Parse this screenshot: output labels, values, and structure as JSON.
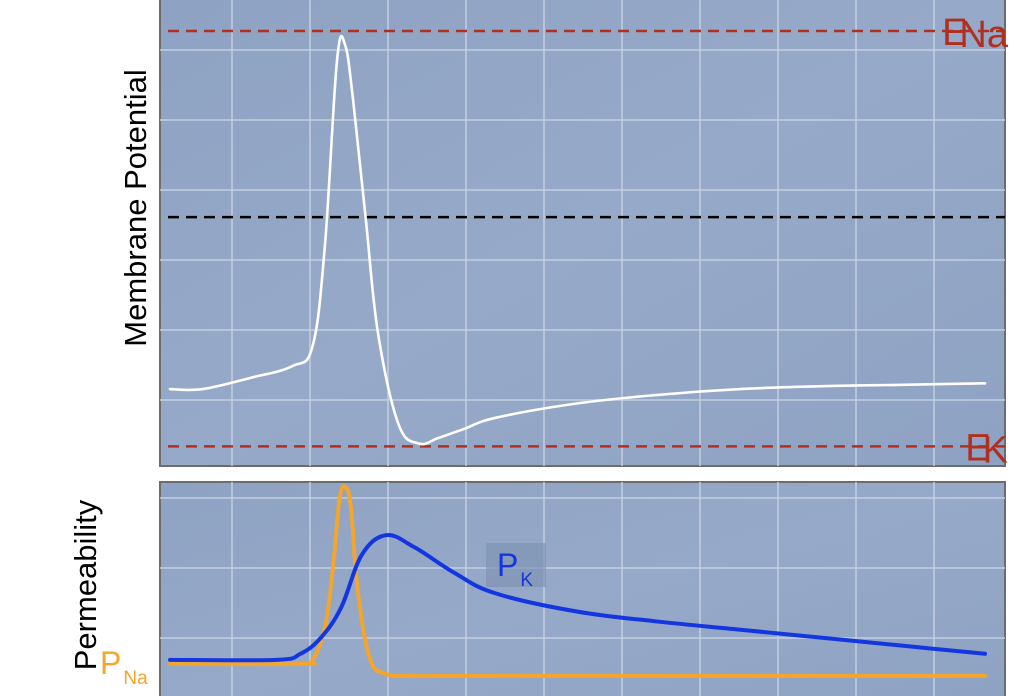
{
  "colors": {
    "panel_bg": "#8ea2c3",
    "panel_bg_light": "#a1b3cf",
    "grid": "#c3cfe0",
    "frame": "#6c6c6c",
    "membrane_trace": "#ffffff",
    "threshold": "#000000",
    "equilibrium": "#b03020",
    "p_na": "#f4a52c",
    "p_k": "#1436e0"
  },
  "chart_data": [
    {
      "type": "line",
      "ylabel": "Membrane Potential",
      "xlabel": "",
      "grid": true,
      "legend": "none",
      "ylim": [
        -100,
        70
      ],
      "xlim": [
        0,
        10
      ],
      "reference_lines": [
        {
          "id": "e_na",
          "label_main": "E",
          "label_sub": "Na",
          "y": 55,
          "style": "dashed",
          "color": "#b03020"
        },
        {
          "id": "threshold",
          "label_main": "",
          "label_sub": "",
          "y": -10,
          "style": "dashed",
          "color": "#000000"
        },
        {
          "id": "e_k",
          "label_main": "E",
          "label_sub": "K",
          "y": -90,
          "style": "dashed",
          "color": "#b03020"
        }
      ],
      "series": [
        {
          "color": "#ffffff",
          "x": [
            0,
            0.4,
            1.0,
            1.5,
            1.75,
            1.9,
            2.05,
            2.15,
            2.25,
            2.4,
            2.55,
            2.8,
            3.05,
            3.3,
            3.6,
            4.0,
            5.0,
            6.0,
            7.0,
            8.0,
            9.0,
            10.0
          ],
          "y": [
            -70,
            -70,
            -66,
            -62,
            -55,
            -20,
            45,
            50,
            30,
            -10,
            -50,
            -82,
            -89,
            -87,
            -84,
            -80,
            -75,
            -72,
            -70,
            -69,
            -68.5,
            -68
          ]
        }
      ]
    },
    {
      "type": "line",
      "ylabel": "Permeability",
      "xlabel": "",
      "grid": true,
      "legend": "none",
      "ylim": [
        0,
        1
      ],
      "xlim": [
        0,
        10
      ],
      "series": [
        {
          "name_main": "P",
          "name_sub": "Na",
          "color": "#f4a52c",
          "x": [
            0,
            1.6,
            1.75,
            1.9,
            2.0,
            2.08,
            2.15,
            2.22,
            2.3,
            2.45,
            2.65,
            3.0,
            4.0,
            10.0
          ],
          "y": [
            0.12,
            0.12,
            0.14,
            0.3,
            0.6,
            0.94,
            1.0,
            0.9,
            0.5,
            0.15,
            0.07,
            0.06,
            0.06,
            0.06
          ]
        },
        {
          "name_main": "P",
          "name_sub": "K",
          "color": "#1436e0",
          "x": [
            0,
            1.3,
            1.6,
            1.85,
            2.1,
            2.35,
            2.65,
            3.0,
            3.5,
            4.0,
            5.0,
            6.0,
            7.0,
            8.0,
            9.0,
            10.0
          ],
          "y": [
            0.14,
            0.14,
            0.17,
            0.25,
            0.4,
            0.66,
            0.76,
            0.7,
            0.57,
            0.47,
            0.38,
            0.33,
            0.29,
            0.25,
            0.21,
            0.17
          ]
        }
      ]
    }
  ]
}
